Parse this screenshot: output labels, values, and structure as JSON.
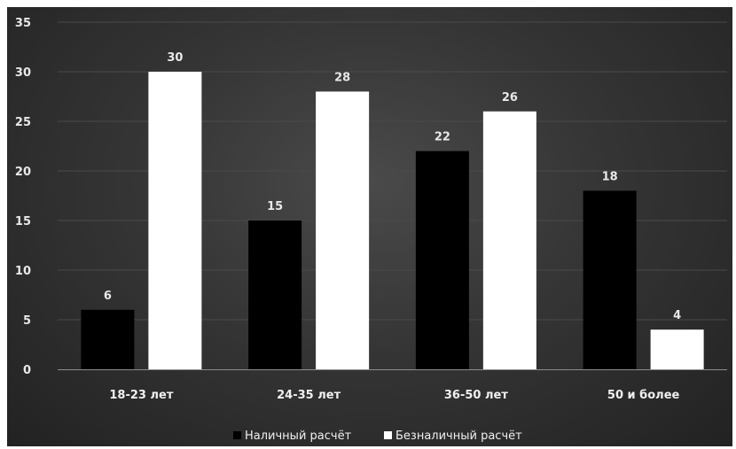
{
  "chart_data": {
    "type": "bar",
    "categories": [
      "18-23 лет",
      "24-35 лет",
      "36-50 лет",
      "50 и более"
    ],
    "series": [
      {
        "name": "Наличный расчёт",
        "values": [
          6,
          15,
          22,
          18
        ],
        "color": "#000000"
      },
      {
        "name": "Безналичный расчёт",
        "values": [
          30,
          28,
          26,
          4
        ],
        "color": "#ffffff"
      }
    ],
    "ylim": [
      0,
      35
    ],
    "yticks": [
      "0",
      "5",
      "10",
      "15",
      "20",
      "25",
      "30",
      "35"
    ],
    "grid": true,
    "legend_position": "bottom",
    "background": "#353535",
    "gridline_color": "#4a4a4a",
    "axis_color": "#8c8c8c"
  }
}
